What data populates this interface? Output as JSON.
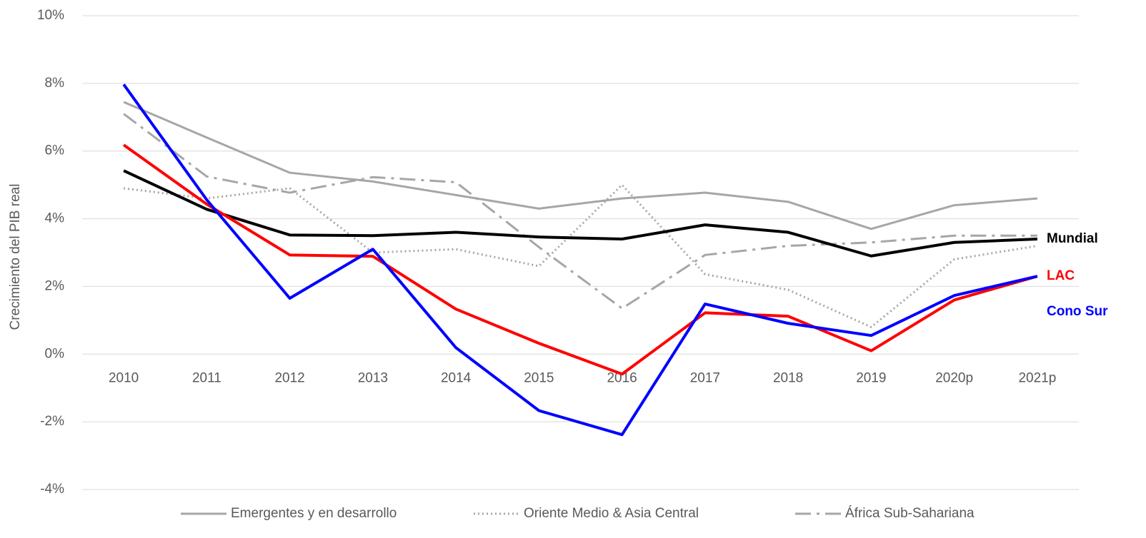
{
  "chart_data": {
    "type": "line",
    "y_axis_label": "Crecimiento del PIB real",
    "categories": [
      "2010",
      "2011",
      "2012",
      "2013",
      "2014",
      "2015",
      "2016",
      "2017",
      "2018",
      "2019",
      "2020p",
      "2021p"
    ],
    "series": [
      {
        "name": "Emergentes y en desarrollo",
        "color": "#a6a6a6",
        "dash": "solid",
        "width": 3,
        "name_position": "legend",
        "values": [
          7.45,
          6.4,
          5.36,
          5.1,
          4.7,
          4.3,
          4.6,
          4.77,
          4.5,
          3.7,
          4.4,
          4.6
        ]
      },
      {
        "name": "Oriente Medio & Asia Central",
        "color": "#a6a6a6",
        "dash": "dotted",
        "width": 3,
        "name_position": "legend",
        "values": [
          4.9,
          4.6,
          4.9,
          3.0,
          3.1,
          2.6,
          5.0,
          2.36,
          1.9,
          0.8,
          2.8,
          3.2
        ]
      },
      {
        "name": "África Sub-Sahariana",
        "color": "#a6a6a6",
        "dash": "dashdot",
        "width": 3,
        "name_position": "legend",
        "values": [
          7.1,
          5.25,
          4.77,
          5.23,
          5.08,
          3.16,
          1.35,
          2.93,
          3.2,
          3.3,
          3.5,
          3.5
        ]
      },
      {
        "name": "Mundial",
        "color": "#000000",
        "dash": "solid",
        "width": 4,
        "name_position": "end",
        "values": [
          5.42,
          4.28,
          3.52,
          3.5,
          3.6,
          3.46,
          3.4,
          3.82,
          3.6,
          2.9,
          3.3,
          3.4
        ]
      },
      {
        "name": "LAC",
        "color": "#ff0000",
        "dash": "solid",
        "width": 4,
        "name_position": "end",
        "values": [
          6.18,
          4.43,
          2.93,
          2.89,
          1.33,
          0.32,
          -0.59,
          1.22,
          1.12,
          0.1,
          1.6,
          2.3
        ]
      },
      {
        "name": "Cono Sur",
        "color": "#0000ff",
        "dash": "solid",
        "width": 4,
        "name_position": "end",
        "values": [
          7.97,
          4.56,
          1.65,
          3.1,
          0.19,
          -1.67,
          -2.38,
          1.48,
          0.91,
          0.55,
          1.73,
          2.3
        ]
      }
    ],
    "ylim": [
      -4,
      10
    ],
    "yticks": [
      {
        "value": -4,
        "label": "-4%"
      },
      {
        "value": -2,
        "label": "-2%"
      },
      {
        "value": 0,
        "label": "0%"
      },
      {
        "value": 2,
        "label": "2%"
      },
      {
        "value": 4,
        "label": "4%"
      },
      {
        "value": 6,
        "label": "6%"
      },
      {
        "value": 8,
        "label": "8%"
      },
      {
        "value": 10,
        "label": "10%"
      }
    ],
    "grid": true,
    "legend": "bottom"
  }
}
